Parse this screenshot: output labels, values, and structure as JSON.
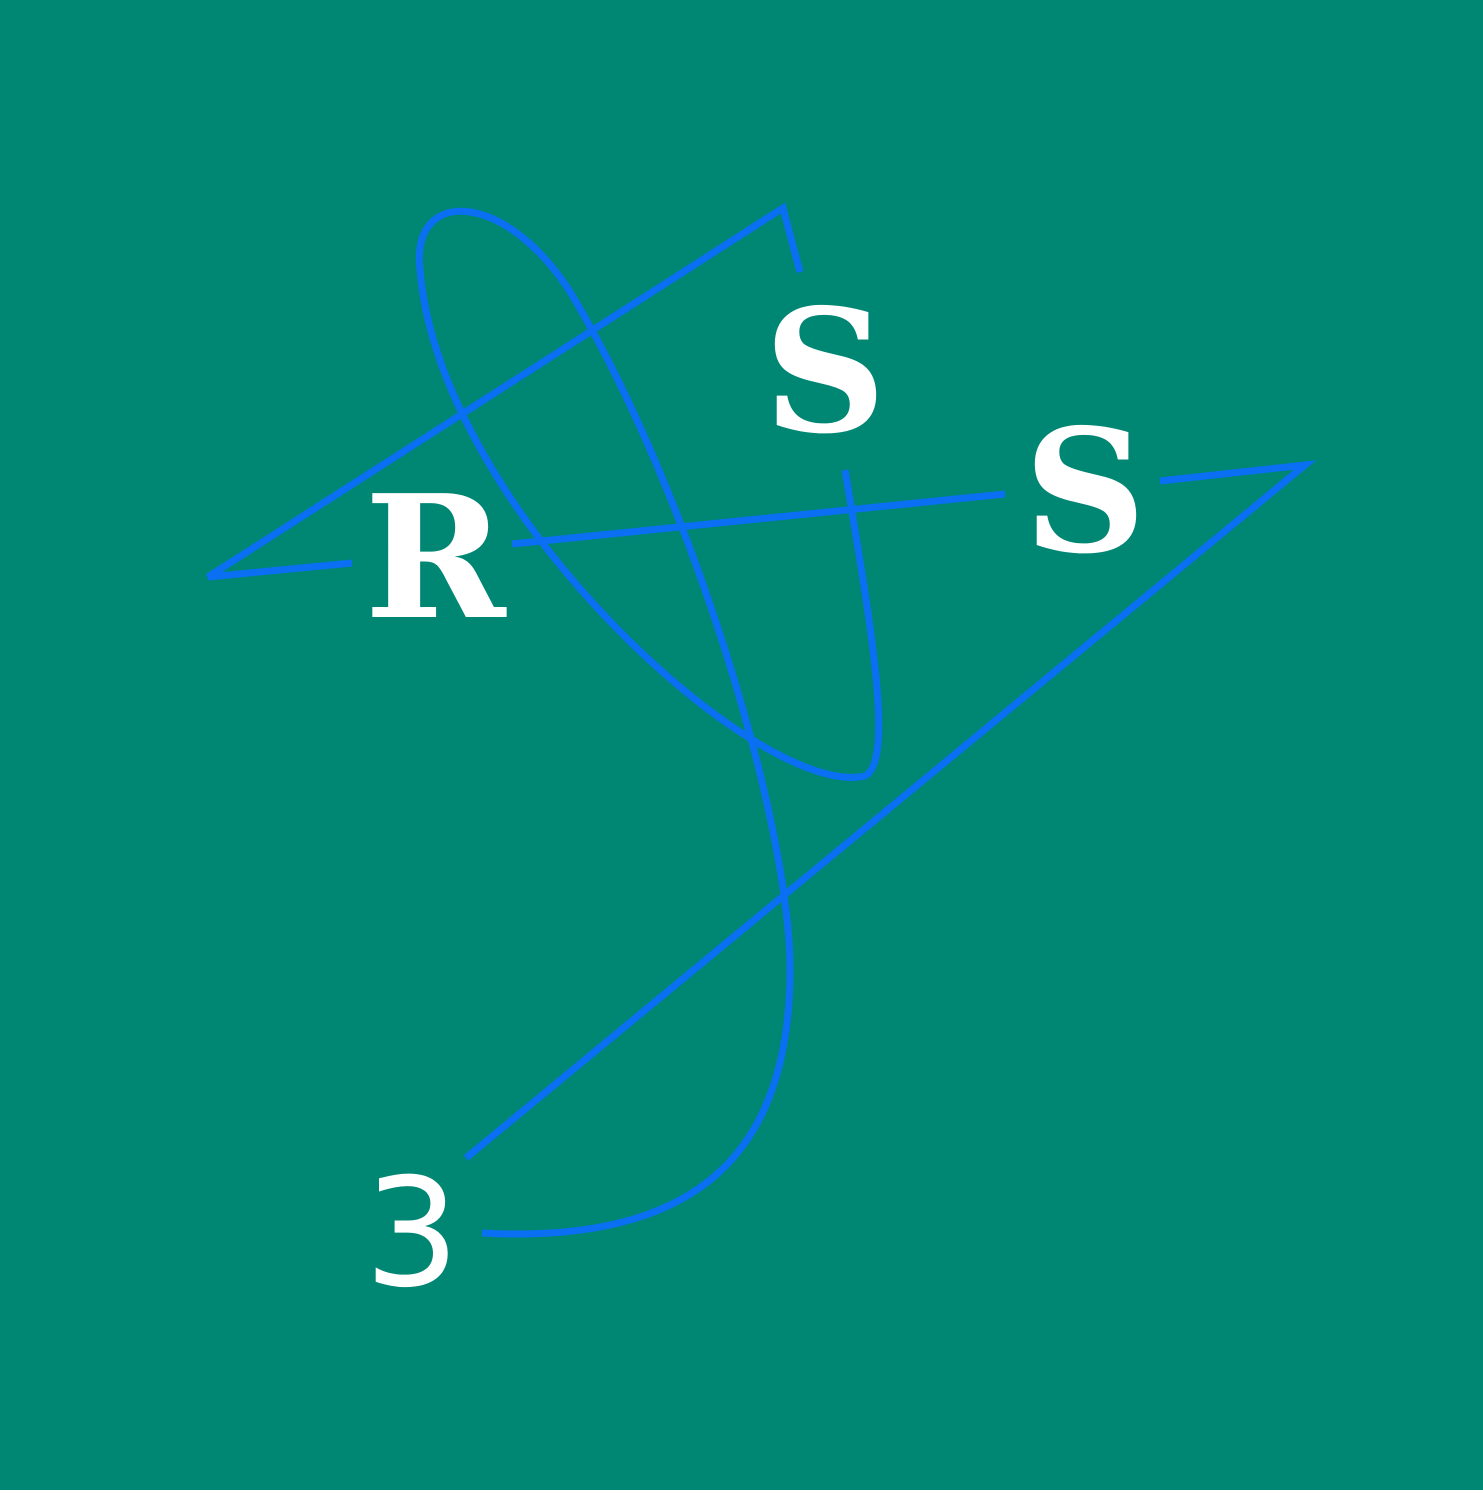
{
  "logo": {
    "letters": [
      "R",
      "S",
      "S",
      "3"
    ],
    "colors": {
      "background": "#008774",
      "stroke": "#0a6ff2",
      "text": "#ffffff"
    }
  }
}
